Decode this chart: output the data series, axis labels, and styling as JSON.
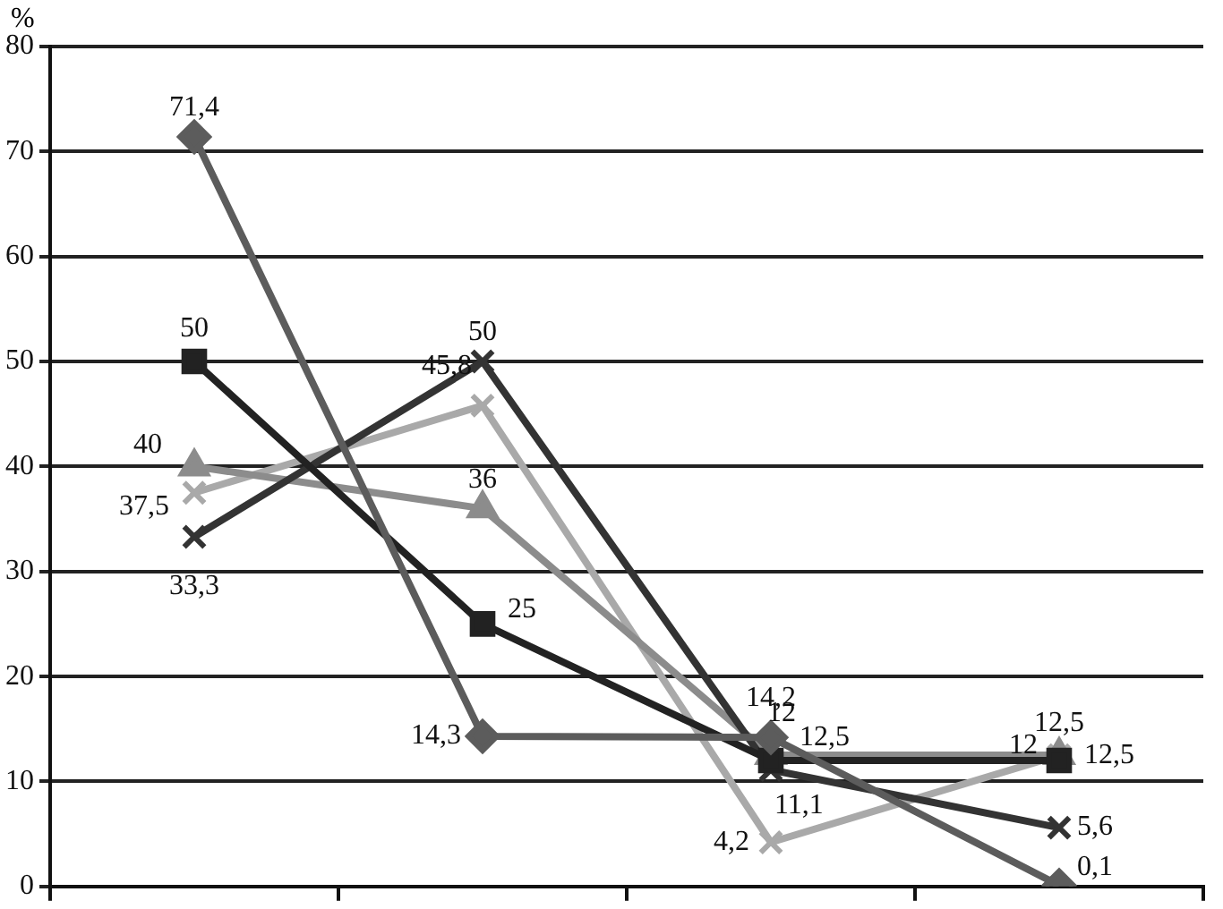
{
  "chart_data": {
    "type": "line",
    "ylabel": "%",
    "categories": [
      null,
      null,
      null,
      null
    ],
    "ylim": [
      0,
      80
    ],
    "yticks": [
      0,
      10,
      20,
      30,
      40,
      50,
      60,
      70,
      80
    ],
    "grid": "y",
    "legend": false,
    "tick_labels": "y",
    "line_style": "solid",
    "series": [
      {
        "color": "#5c5c5c",
        "marker": "diamond",
        "values": [
          71.4,
          14.3,
          14.2,
          0.1
        ],
        "value_labels": [
          "71,4",
          "14,3",
          "14,2",
          "0,1"
        ]
      },
      {
        "color": "#222222",
        "marker": "square",
        "values": [
          50,
          25,
          12,
          12
        ],
        "value_labels": [
          "50",
          "25",
          "12",
          "12"
        ]
      },
      {
        "color": "#333333",
        "marker": "cross",
        "values": [
          33.3,
          50,
          11.1,
          5.6
        ],
        "value_labels": [
          "33,3",
          "50",
          "11,1",
          "5,6"
        ]
      },
      {
        "color": "#8c8c8c",
        "marker": "triangle",
        "values": [
          40,
          36,
          12.5,
          12.5
        ],
        "value_labels": [
          "40",
          "36",
          "12,5",
          "12,5"
        ]
      },
      {
        "color": "#a9a9a9",
        "marker": "cross",
        "values": [
          37.5,
          45.8,
          4.2,
          12.5
        ],
        "value_labels": [
          "37,5",
          "45,8",
          "4,2",
          "12,5"
        ]
      }
    ]
  }
}
